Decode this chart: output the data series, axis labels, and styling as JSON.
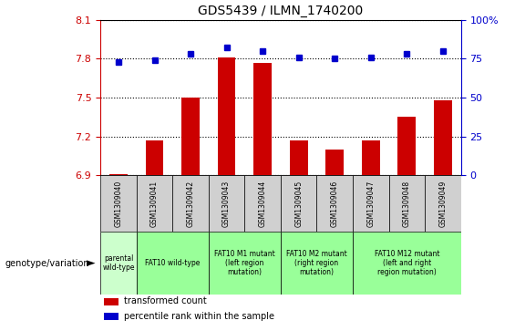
{
  "title": "GDS5439 / ILMN_1740200",
  "samples": [
    "GSM1309040",
    "GSM1309041",
    "GSM1309042",
    "GSM1309043",
    "GSM1309044",
    "GSM1309045",
    "GSM1309046",
    "GSM1309047",
    "GSM1309048",
    "GSM1309049"
  ],
  "bar_values": [
    6.91,
    7.17,
    7.5,
    7.81,
    7.77,
    7.17,
    7.1,
    7.17,
    7.35,
    7.48
  ],
  "dot_percentiles": [
    73,
    74,
    78,
    82,
    80,
    76,
    75,
    76,
    78,
    80
  ],
  "ylim": [
    6.9,
    8.1
  ],
  "yticks_left": [
    6.9,
    7.2,
    7.5,
    7.8,
    8.1
  ],
  "yticks_right": [
    0,
    25,
    50,
    75,
    100
  ],
  "bar_color": "#cc0000",
  "dot_color": "#0000cc",
  "groups": [
    {
      "label": "parental\nwild-type",
      "start": 0,
      "end": 1,
      "color": "#ccffcc"
    },
    {
      "label": "FAT10 wild-type",
      "start": 1,
      "end": 3,
      "color": "#99ff99"
    },
    {
      "label": "FAT10 M1 mutant\n(left region\nmutation)",
      "start": 3,
      "end": 5,
      "color": "#99ff99"
    },
    {
      "label": "FAT10 M2 mutant\n(right region\nmutation)",
      "start": 5,
      "end": 7,
      "color": "#99ff99"
    },
    {
      "label": "FAT10 M12 mutant\n(left and right\nregion mutation)",
      "start": 7,
      "end": 10,
      "color": "#99ff99"
    }
  ],
  "group_colors": [
    "#ccffcc",
    "#99ff99",
    "#99ff99",
    "#99ff99",
    "#99ff99"
  ],
  "sample_bg_color": "#d0d0d0",
  "legend_items": [
    {
      "color": "#cc0000",
      "label": "transformed count"
    },
    {
      "color": "#0000cc",
      "label": "percentile rank within the sample"
    }
  ],
  "genotype_label": "genotype/variation",
  "left_axis_color": "#cc0000",
  "right_axis_color": "#0000cc"
}
